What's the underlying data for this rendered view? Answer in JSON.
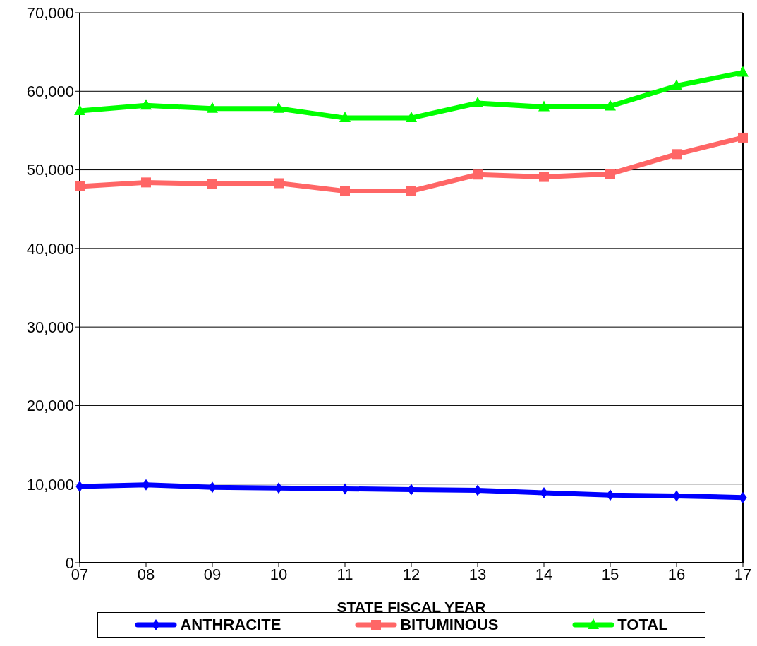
{
  "chart_data": {
    "type": "line",
    "xlabel": "STATE FISCAL YEAR",
    "categories": [
      "07",
      "08",
      "09",
      "10",
      "11",
      "12",
      "13",
      "14",
      "15",
      "16",
      "17"
    ],
    "series": [
      {
        "name": "ANTHRACITE",
        "color": "#0000ff",
        "marker": "diamond",
        "values": [
          9700,
          9900,
          9600,
          9500,
          9400,
          9300,
          9200,
          8900,
          8600,
          8500,
          8300
        ]
      },
      {
        "name": "BITUMINOUS",
        "color": "#ff6666",
        "marker": "square",
        "values": [
          47900,
          48400,
          48200,
          48300,
          47300,
          47300,
          49400,
          49100,
          49500,
          52000,
          54100
        ]
      },
      {
        "name": "TOTAL",
        "color": "#00ff00",
        "marker": "triangle",
        "values": [
          57500,
          58200,
          57800,
          57800,
          56600,
          56600,
          58500,
          58000,
          58100,
          60700,
          62400
        ]
      }
    ],
    "ylim": [
      0,
      70000
    ],
    "yticks": [
      0,
      {
        "value": 10000,
        "label": "10,000"
      },
      {
        "value": 20000,
        "label": "20,000"
      },
      {
        "value": 30000,
        "label": "30,000"
      },
      {
        "value": 40000,
        "label": "40,000"
      },
      {
        "value": 50000,
        "label": "50,000"
      },
      {
        "value": 60000,
        "label": "60,000"
      },
      {
        "value": 70000,
        "label": "70,000"
      }
    ],
    "grid": "y",
    "legend": "bottom",
    "line_style": "solid"
  }
}
